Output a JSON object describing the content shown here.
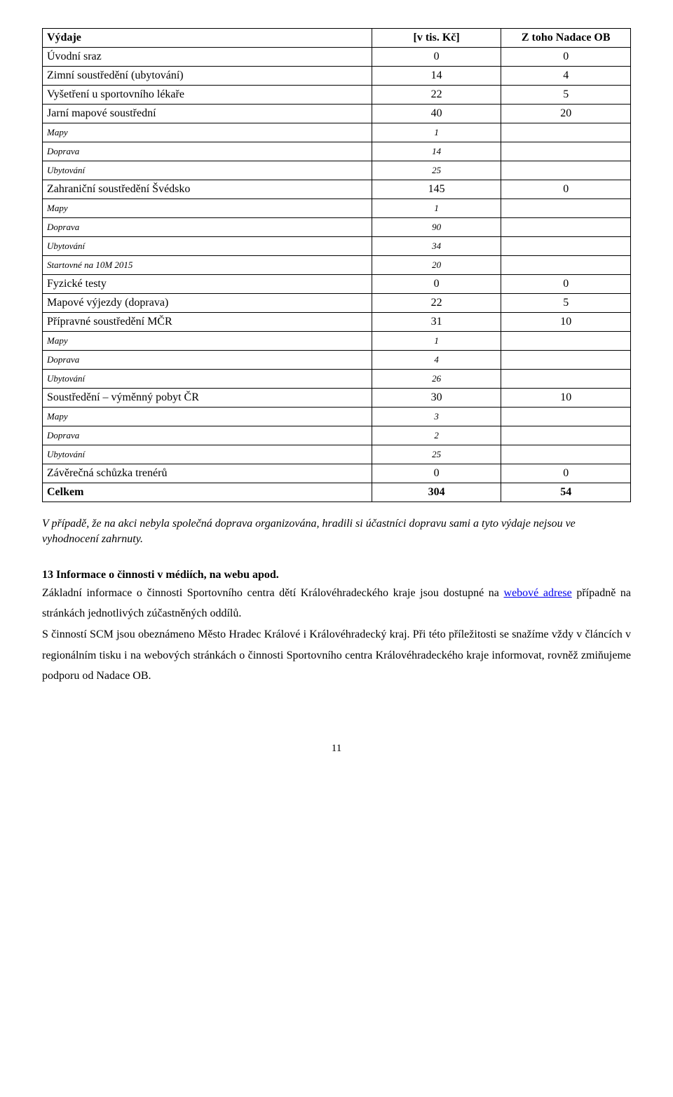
{
  "header": {
    "c1": "Výdaje",
    "c2": "[v tis. Kč]",
    "c3": "Z toho Nadace OB"
  },
  "rows": [
    {
      "c1": "Úvodní sraz",
      "c2": "0",
      "c3": "0",
      "style": "normal"
    },
    {
      "c1": "Zimní soustředění (ubytování)",
      "c2": "14",
      "c3": "4",
      "style": "normal"
    },
    {
      "c1": "Vyšetření u sportovního lékaře",
      "c2": "22",
      "c3": "5",
      "style": "normal"
    },
    {
      "c1": "Jarní mapové soustřední",
      "c2": "40",
      "c3": "20",
      "style": "normal"
    },
    {
      "c1": "Mapy",
      "c2": "1",
      "c3": "",
      "style": "italic"
    },
    {
      "c1": "Doprava",
      "c2": "14",
      "c3": "",
      "style": "italic"
    },
    {
      "c1": "Ubytování",
      "c2": "25",
      "c3": "",
      "style": "italic"
    },
    {
      "c1": "Zahraniční soustředění Švédsko",
      "c2": "145",
      "c3": "0",
      "style": "normal"
    },
    {
      "c1": "Mapy",
      "c2": "1",
      "c3": "",
      "style": "italic"
    },
    {
      "c1": "Doprava",
      "c2": "90",
      "c3": "",
      "style": "italic"
    },
    {
      "c1": "Ubytování",
      "c2": "34",
      "c3": "",
      "style": "italic"
    },
    {
      "c1": "Startovné na 10M 2015",
      "c2": "20",
      "c3": "",
      "style": "italic"
    },
    {
      "c1": "Fyzické testy",
      "c2": "0",
      "c3": "0",
      "style": "normal"
    },
    {
      "c1": "Mapové výjezdy (doprava)",
      "c2": "22",
      "c3": "5",
      "style": "normal"
    },
    {
      "c1": "Přípravné soustředění MČR",
      "c2": "31",
      "c3": "10",
      "style": "normal"
    },
    {
      "c1": "Mapy",
      "c2": "1",
      "c3": "",
      "style": "italic"
    },
    {
      "c1": "Doprava",
      "c2": "4",
      "c3": "",
      "style": "italic"
    },
    {
      "c1": "Ubytování",
      "c2": "26",
      "c3": "",
      "style": "italic"
    },
    {
      "c1": "Soustředění – výměnný pobyt ČR",
      "c2": "30",
      "c3": "10",
      "style": "normal"
    },
    {
      "c1": "Mapy",
      "c2": "3",
      "c3": "",
      "style": "italic"
    },
    {
      "c1": "Doprava",
      "c2": "2",
      "c3": "",
      "style": "italic"
    },
    {
      "c1": "Ubytování",
      "c2": "25",
      "c3": "",
      "style": "italic"
    },
    {
      "c1": "Závěrečná schůzka trenérů",
      "c2": "0",
      "c3": "0",
      "style": "normal"
    },
    {
      "c1": "Celkem",
      "c2": "304",
      "c3": "54",
      "style": "bold"
    }
  ],
  "note": "V případě, že na akci nebyla společná doprava organizována, hradili si účastníci dopravu sami a tyto výdaje nejsou ve vyhodnocení zahrnuty.",
  "section_title": "13 Informace o činnosti v médiích, na webu apod.",
  "para1a": "Základní informace o činnosti Sportovního centra dětí Královéhradeckého kraje jsou dostupné na ",
  "link_text": "webové adrese",
  "para1b": " případně na stránkách jednotlivých zúčastněných oddílů.",
  "para2": "S činností SCM jsou obeznámeno Město Hradec Králové i Královéhradecký kraj. Při této příležitosti se snažíme vždy v článcích v regionálním tisku i na webových stránkách o činnosti Sportovního centra Královéhradeckého kraje informovat, rovněž zmiňujeme podporu od Nadace OB.",
  "page_number": "11"
}
